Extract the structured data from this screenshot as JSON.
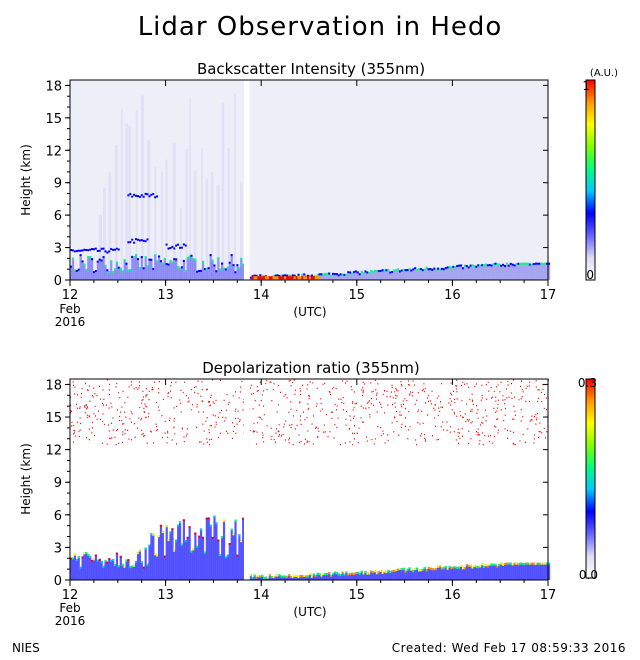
{
  "title": "Lidar Observation in Hedo",
  "footer": {
    "left": "NIES",
    "right": "Created: Wed Feb 17 08:59:33 2016"
  },
  "colors": {
    "colormap": [
      "#ffffff",
      "#dcdcf5",
      "#6464ff",
      "#0000ff",
      "#00c8ff",
      "#00ff80",
      "#80ff00",
      "#ffff00",
      "#ff9900",
      "#ff0000"
    ],
    "axis": "#000000"
  },
  "chart_data": [
    {
      "type": "heatmap",
      "title": "Backscatter Intensity (355nm)",
      "ylabel": "Height (km)",
      "xlabel": "(UTC)",
      "x_ticks": [
        "12",
        "13",
        "14",
        "15",
        "16",
        "17"
      ],
      "x_first_label": [
        "Feb",
        "2016"
      ],
      "xlim": [
        12,
        17
      ],
      "y_ticks": [
        "0",
        "3",
        "6",
        "9",
        "12",
        "15",
        "18"
      ],
      "ylim": [
        0,
        18.5
      ],
      "colorbar": {
        "unit": "(A.U.)",
        "min_label": "0",
        "max_label": "1",
        "range": [
          0,
          1
        ]
      },
      "no_data_interval": [
        13.82,
        13.88
      ]
    },
    {
      "type": "heatmap",
      "title": "Depolarization ratio (355nm)",
      "ylabel": "Height (km)",
      "xlabel": "(UTC)",
      "x_ticks": [
        "12",
        "13",
        "14",
        "15",
        "16",
        "17"
      ],
      "x_first_label": [
        "Feb",
        "2016"
      ],
      "xlim": [
        12,
        17
      ],
      "y_ticks": [
        "0",
        "3",
        "6",
        "9",
        "12",
        "15",
        "18"
      ],
      "ylim": [
        0,
        18.5
      ],
      "colorbar": {
        "unit": "",
        "min_label": "0.0",
        "max_label": "0.3",
        "range": [
          0,
          0.3
        ]
      },
      "no_data_interval": [
        13.82,
        13.88
      ]
    }
  ]
}
